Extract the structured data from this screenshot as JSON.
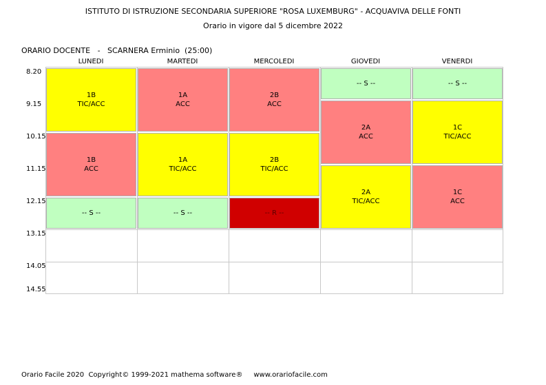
{
  "header": {
    "line1": "ISTITUTO DI ISTRUZIONE SECONDARIA SUPERIORE \"ROSA LUXEMBURG\" - ACQUAVIVA DELLE FONTI",
    "line2": "Orario in vigore dal 5 dicembre 2022"
  },
  "teacher": "ORARIO DOCENTE   -   SCARNERA Erminio  (25:00)",
  "days": [
    "LUNEDI",
    "MARTEDI",
    "MERCOLEDI",
    "GIOVEDI",
    "VENERDI"
  ],
  "times": [
    "8.20",
    "9.15",
    "10.15",
    "11.15",
    "12.15",
    "13.15",
    "14.05",
    "14.55"
  ],
  "lessons": {
    "mon1": {
      "cls": "1B",
      "subj": "TIC/ACC"
    },
    "mon2": {
      "cls": "1B",
      "subj": "ACC"
    },
    "mon3": {
      "text": "-- S --"
    },
    "tue1": {
      "cls": "1A",
      "subj": "ACC"
    },
    "tue2": {
      "cls": "1A",
      "subj": "TIC/ACC"
    },
    "tue3": {
      "text": "-- S --"
    },
    "wed1": {
      "cls": "2B",
      "subj": "ACC"
    },
    "wed2": {
      "cls": "2B",
      "subj": "TIC/ACC"
    },
    "wed3": {
      "text": "-- R --"
    },
    "thu0": {
      "text": "-- S --"
    },
    "thu1": {
      "cls": "2A",
      "subj": "ACC"
    },
    "thu2": {
      "cls": "2A",
      "subj": "TIC/ACC"
    },
    "fri0": {
      "text": "-- S --"
    },
    "fri1": {
      "cls": "1C",
      "subj": "TIC/ACC"
    },
    "fri2": {
      "cls": "1C",
      "subj": "ACC"
    }
  },
  "colors": {
    "yellow": "#ffff00",
    "red": "#ff8080",
    "green": "#c0ffc0",
    "dark_red": "#d00000"
  },
  "footer": "Orario Facile 2020  Copyright© 1999-2021 mathema software®     www.orariofacile.com"
}
